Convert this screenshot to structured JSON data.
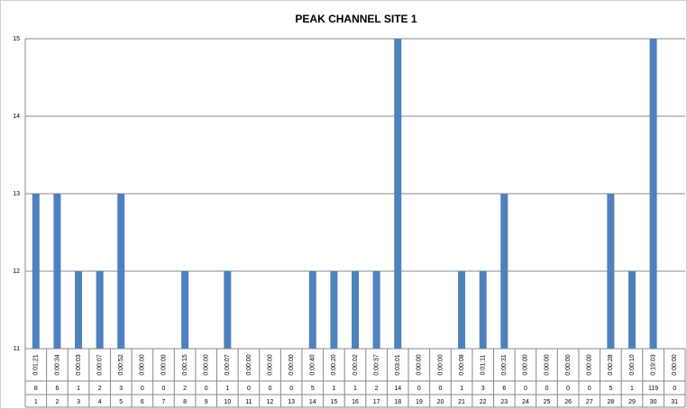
{
  "chart_data": {
    "type": "bar",
    "title": "PEAK CHANNEL SITE 1",
    "categories": [
      "1",
      "2",
      "3",
      "4",
      "5",
      "6",
      "7",
      "8",
      "9",
      "10",
      "11",
      "12",
      "13",
      "14",
      "15",
      "16",
      "17",
      "18",
      "19",
      "20",
      "21",
      "22",
      "23",
      "24",
      "25",
      "26",
      "27",
      "28",
      "29",
      "30",
      "31"
    ],
    "values": [
      13,
      13,
      12,
      12,
      13,
      null,
      null,
      12,
      null,
      12,
      null,
      null,
      null,
      12,
      12,
      12,
      12,
      15,
      null,
      null,
      12,
      12,
      13,
      null,
      null,
      null,
      null,
      13,
      12,
      15,
      null
    ],
    "durations": [
      "0:01:21",
      "0:00:34",
      "0:00:03",
      "0:00:07",
      "0:00:52",
      "0:00:00",
      "0:00:00",
      "0:00:15",
      "0:00:00",
      "0:00:07",
      "0:00:00",
      "0:00:00",
      "0:00:00",
      "0:00:40",
      "0:00:20",
      "0:00:02",
      "0:00:37",
      "0:03:01",
      "0:00:00",
      "0:00:00",
      "0:00:08",
      "0:01:11",
      "0:00:31",
      "0:00:00",
      "0:00:00",
      "0:00:00",
      "0:00:00",
      "0:00:28",
      "0:00:10",
      "0:19:03",
      "0:00:00"
    ],
    "counts": [
      8,
      6,
      1,
      2,
      3,
      0,
      0,
      2,
      0,
      1,
      0,
      0,
      0,
      5,
      1,
      1,
      2,
      14,
      0,
      0,
      1,
      3,
      6,
      0,
      0,
      0,
      0,
      5,
      1,
      119,
      0
    ],
    "color": "#4f81bd",
    "ylim": [
      11,
      15
    ],
    "yticks": [
      11,
      12,
      13,
      14,
      15
    ],
    "grid": true
  }
}
